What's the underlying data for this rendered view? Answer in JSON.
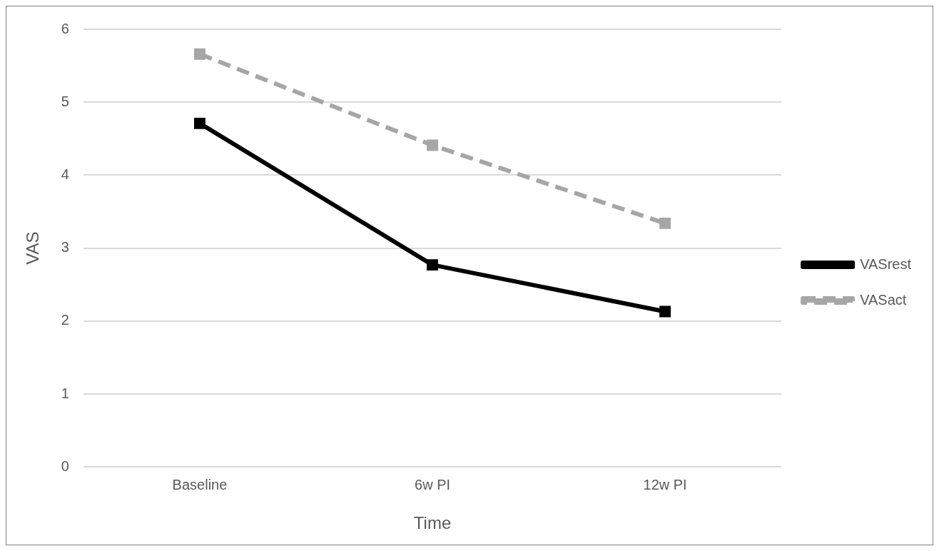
{
  "chart_data": {
    "type": "line",
    "xlabel": "Time",
    "ylabel": "VAS",
    "categories": [
      "Baseline",
      "6w PI",
      "12w PI"
    ],
    "series": [
      {
        "name": "VASrest",
        "color": "#000000",
        "values": [
          4.71,
          2.77,
          2.13
        ],
        "line_style": "solid"
      },
      {
        "name": "VASact",
        "color": "#a6a6a6",
        "values": [
          5.66,
          4.41,
          3.34
        ],
        "line_style": "dashed"
      }
    ],
    "ylim": [
      0,
      6
    ],
    "yticks": [
      0,
      1,
      2,
      3,
      4,
      5,
      6
    ],
    "grid": "y",
    "legend": "right",
    "marker": "square"
  }
}
